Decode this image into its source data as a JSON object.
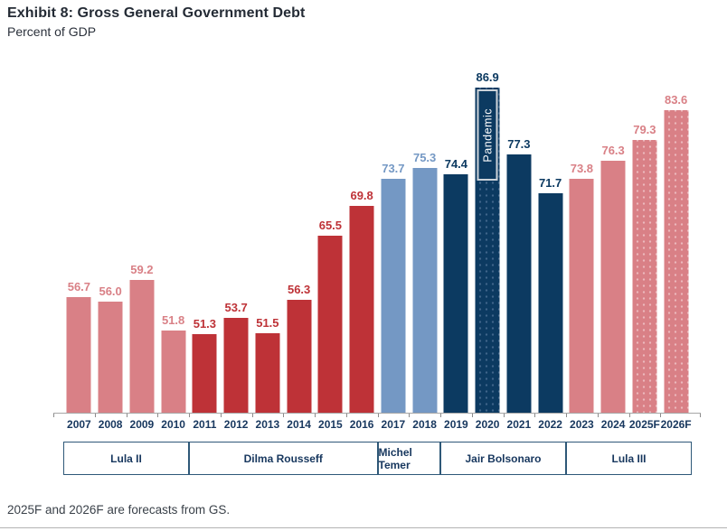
{
  "header": {
    "title": "Exhibit 8: Gross General Government Debt",
    "subtitle": "Percent of GDP"
  },
  "footer": {
    "note": "2025F and 2026F are forecasts from GS."
  },
  "colors": {
    "rose": "#D98086",
    "red": "#BE3237",
    "light_blue": "#7498C4",
    "navy": "#0C3A61",
    "rose_dot": "#ECB9BD",
    "navy_dot": "#40658A",
    "axis_line": "#A6A6A6",
    "tick": "#8C8C8C",
    "year_label": "#17375E",
    "box_border": "#2E5878",
    "box_text": "#17375E",
    "pandemic_border": "#CBD2D9",
    "pandemic_text": "#FFFFFF"
  },
  "chart_data": {
    "type": "bar",
    "title": "Exhibit 8: Gross General Government Debt",
    "ylabel": "Percent of GDP",
    "ylim": [
      40,
      90
    ],
    "grid": false,
    "legend": "none",
    "categories": [
      "2007",
      "2008",
      "2009",
      "2010",
      "2011",
      "2012",
      "2013",
      "2014",
      "2015",
      "2016",
      "2017",
      "2018",
      "2019",
      "2020",
      "2021",
      "2022",
      "2023",
      "2024",
      "2025F",
      "2026F"
    ],
    "values": [
      56.7,
      56.0,
      59.2,
      51.8,
      51.3,
      53.7,
      51.5,
      56.3,
      65.5,
      69.8,
      73.7,
      75.3,
      74.4,
      86.9,
      77.3,
      71.7,
      73.8,
      76.3,
      79.3,
      83.6
    ],
    "color_keys": [
      "rose",
      "rose",
      "rose",
      "rose",
      "red",
      "red",
      "red",
      "red",
      "red",
      "red",
      "light_blue",
      "light_blue",
      "navy",
      "navy",
      "navy",
      "navy",
      "rose",
      "rose",
      "rose",
      "rose"
    ],
    "dotted_categories": [
      "2020",
      "2025F",
      "2026F"
    ],
    "annotations": [
      {
        "text": "Pandemic",
        "category": "2020"
      }
    ],
    "president_groups": [
      {
        "label": "Lula II",
        "start_index": 0,
        "count": 4
      },
      {
        "label": "Dilma Rousseff",
        "start_index": 4,
        "count": 6
      },
      {
        "label": "Michel Temer",
        "start_index": 10,
        "count": 2
      },
      {
        "label": "Jair Bolsonaro",
        "start_index": 12,
        "count": 4
      },
      {
        "label": "Lula III",
        "start_index": 16,
        "count": 4
      }
    ]
  }
}
